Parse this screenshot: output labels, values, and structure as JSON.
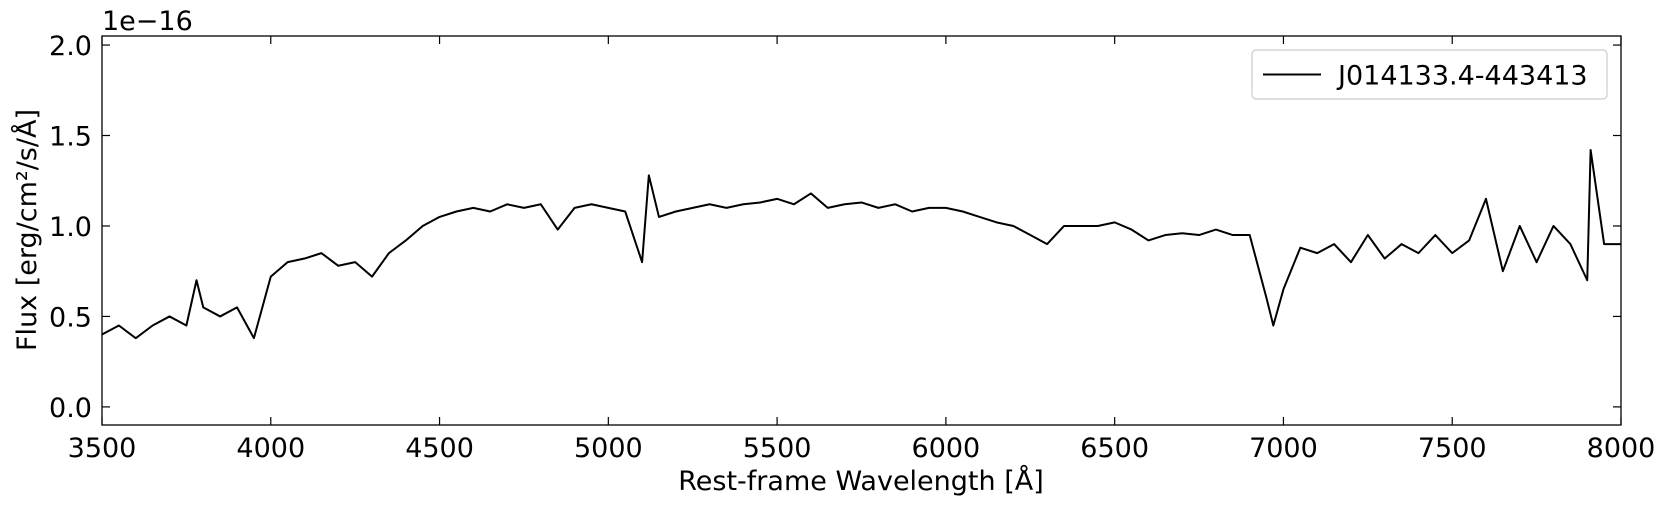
{
  "chart_data": {
    "type": "line",
    "x_label": "Rest-frame Wavelength [Å]",
    "y_label": "Flux [erg/cm²/s/Å]",
    "y_offset_text": "1e−16",
    "xlim": [
      3500,
      8000
    ],
    "ylim": [
      -0.1,
      2.05
    ],
    "xticks": [
      3500,
      4000,
      4500,
      5000,
      5500,
      6000,
      6500,
      7000,
      7500,
      8000
    ],
    "yticks": [
      {
        "value": 0,
        "label": "0.0"
      },
      {
        "value": 0.5,
        "label": "0.5"
      },
      {
        "value": 1,
        "label": "1.0"
      },
      {
        "value": 1.5,
        "label": "1.5"
      },
      {
        "value": 2,
        "label": "2.0"
      }
    ],
    "legend_position": "upper right",
    "x": [
      3500,
      3550,
      3600,
      3650,
      3700,
      3750,
      3780,
      3800,
      3850,
      3900,
      3950,
      4000,
      4050,
      4100,
      4150,
      4200,
      4250,
      4300,
      4350,
      4400,
      4450,
      4500,
      4550,
      4600,
      4650,
      4700,
      4750,
      4800,
      4850,
      4900,
      4950,
      5000,
      5050,
      5100,
      5120,
      5150,
      5200,
      5250,
      5300,
      5350,
      5400,
      5450,
      5500,
      5550,
      5600,
      5650,
      5700,
      5750,
      5800,
      5850,
      5900,
      5950,
      6000,
      6050,
      6100,
      6150,
      6200,
      6250,
      6300,
      6350,
      6400,
      6450,
      6500,
      6550,
      6600,
      6650,
      6700,
      6750,
      6800,
      6850,
      6900,
      6950,
      6970,
      7000,
      7050,
      7100,
      7150,
      7200,
      7250,
      7300,
      7350,
      7400,
      7450,
      7500,
      7550,
      7600,
      7650,
      7700,
      7750,
      7800,
      7850,
      7900,
      7910,
      7950,
      8000
    ],
    "series": [
      {
        "name": "J014133.4-443413",
        "color": "#000000",
        "values": [
          0.4,
          0.45,
          0.38,
          0.45,
          0.5,
          0.45,
          0.7,
          0.55,
          0.5,
          0.55,
          0.38,
          0.72,
          0.8,
          0.82,
          0.85,
          0.78,
          0.8,
          0.72,
          0.85,
          0.92,
          1.0,
          1.05,
          1.08,
          1.1,
          1.08,
          1.12,
          1.1,
          1.12,
          0.98,
          1.1,
          1.12,
          1.1,
          1.08,
          0.8,
          1.28,
          1.05,
          1.08,
          1.1,
          1.12,
          1.1,
          1.12,
          1.13,
          1.15,
          1.12,
          1.18,
          1.1,
          1.12,
          1.13,
          1.1,
          1.12,
          1.08,
          1.1,
          1.1,
          1.08,
          1.05,
          1.02,
          1.0,
          0.95,
          0.9,
          1.0,
          1.0,
          1.0,
          1.02,
          0.98,
          0.92,
          0.95,
          0.96,
          0.95,
          0.98,
          0.95,
          0.95,
          0.6,
          0.45,
          0.65,
          0.88,
          0.85,
          0.9,
          0.8,
          0.95,
          0.82,
          0.9,
          0.85,
          0.95,
          0.85,
          0.92,
          1.15,
          0.75,
          1.0,
          0.8,
          1.0,
          0.9,
          0.7,
          1.42,
          0.9,
          0.9
        ]
      }
    ]
  }
}
